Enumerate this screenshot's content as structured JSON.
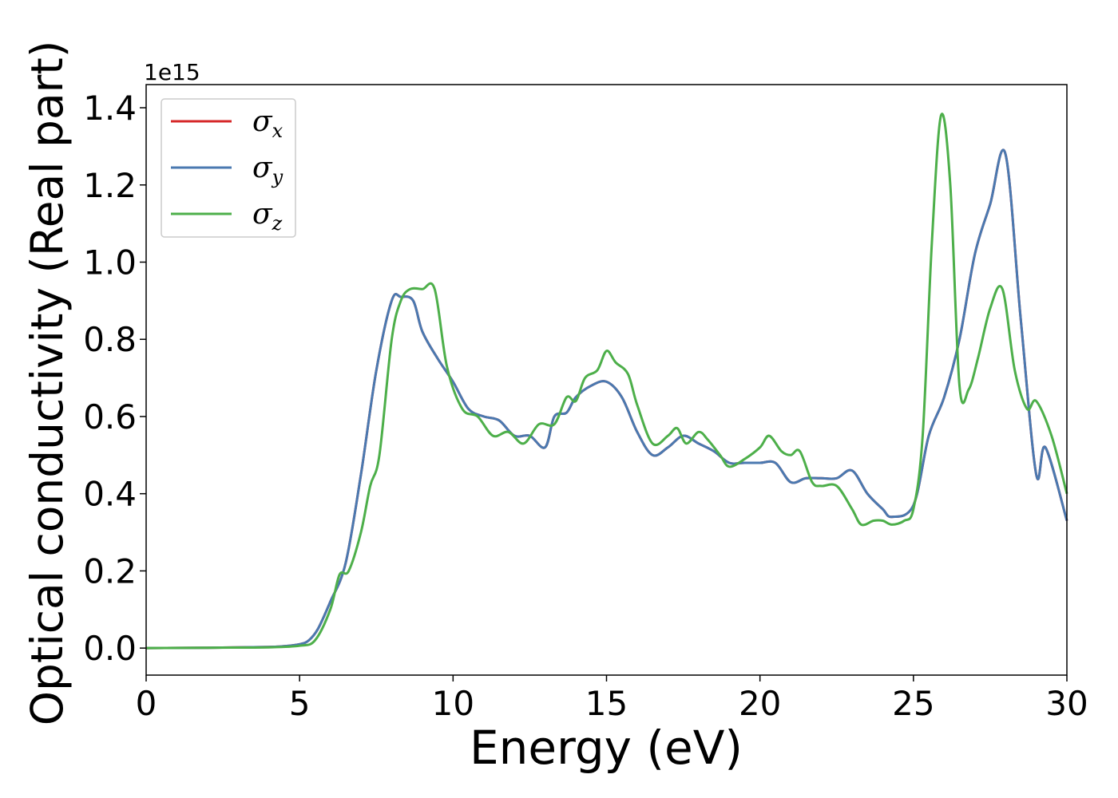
{
  "chart_data": {
    "type": "line",
    "title": "",
    "xlabel": "Energy (eV)",
    "ylabel": "Optical conductivity (Real part)",
    "y_offset_label": "1e15",
    "xlim": [
      0,
      30
    ],
    "ylim": [
      -0.07,
      1.46
    ],
    "x_ticks": [
      0,
      5,
      10,
      15,
      20,
      25,
      30
    ],
    "x_tick_labels": [
      "0",
      "5",
      "10",
      "15",
      "20",
      "25",
      "30"
    ],
    "y_ticks": [
      0.0,
      0.2,
      0.4,
      0.6,
      0.8,
      1.0,
      1.2,
      1.4
    ],
    "y_tick_labels": [
      "0.0",
      "0.2",
      "0.4",
      "0.6",
      "0.8",
      "1.0",
      "1.2",
      "1.4"
    ],
    "grid": false,
    "legend_position": "top-left",
    "series": [
      {
        "name": "σx",
        "symbol": "σ",
        "subscript": "x",
        "color": "#d62728",
        "x": [
          0,
          2,
          4,
          4.5,
          5,
          5.3,
          5.6,
          6,
          6.5,
          7,
          7.5,
          8,
          8.3,
          8.7,
          9,
          9.5,
          10,
          10.5,
          11,
          11.5,
          12,
          12.5,
          13,
          13.3,
          13.7,
          14,
          14.5,
          15,
          15.5,
          16,
          16.5,
          17,
          17.5,
          18,
          18.5,
          19,
          19.5,
          20,
          20.5,
          21,
          21.5,
          22,
          22.5,
          23,
          23.5,
          24,
          24.3,
          25,
          25.5,
          26,
          26.5,
          27,
          27.5,
          28,
          28.5,
          29,
          29.3,
          30
        ],
        "y": [
          0,
          0.001,
          0.003,
          0.005,
          0.01,
          0.02,
          0.05,
          0.12,
          0.22,
          0.45,
          0.72,
          0.9,
          0.91,
          0.9,
          0.82,
          0.75,
          0.69,
          0.62,
          0.6,
          0.59,
          0.55,
          0.55,
          0.52,
          0.6,
          0.61,
          0.65,
          0.68,
          0.69,
          0.65,
          0.56,
          0.5,
          0.52,
          0.55,
          0.53,
          0.51,
          0.48,
          0.48,
          0.48,
          0.48,
          0.43,
          0.44,
          0.44,
          0.44,
          0.46,
          0.4,
          0.36,
          0.34,
          0.37,
          0.55,
          0.65,
          0.8,
          1.02,
          1.15,
          1.28,
          0.85,
          0.45,
          0.52,
          0.33
        ]
      },
      {
        "name": "σy",
        "symbol": "σ",
        "subscript": "y",
        "color": "#4a79b0",
        "x": [
          0,
          2,
          4,
          4.5,
          5,
          5.3,
          5.6,
          6,
          6.5,
          7,
          7.5,
          8,
          8.3,
          8.7,
          9,
          9.5,
          10,
          10.5,
          11,
          11.5,
          12,
          12.5,
          13,
          13.3,
          13.7,
          14,
          14.5,
          15,
          15.5,
          16,
          16.5,
          17,
          17.5,
          18,
          18.5,
          19,
          19.5,
          20,
          20.5,
          21,
          21.5,
          22,
          22.5,
          23,
          23.5,
          24,
          24.3,
          25,
          25.5,
          26,
          26.5,
          27,
          27.5,
          28,
          28.5,
          29,
          29.3,
          30
        ],
        "y": [
          0,
          0.001,
          0.003,
          0.005,
          0.01,
          0.02,
          0.05,
          0.12,
          0.22,
          0.45,
          0.72,
          0.9,
          0.91,
          0.9,
          0.82,
          0.75,
          0.69,
          0.62,
          0.6,
          0.59,
          0.55,
          0.55,
          0.52,
          0.6,
          0.61,
          0.65,
          0.68,
          0.69,
          0.65,
          0.56,
          0.5,
          0.52,
          0.55,
          0.53,
          0.51,
          0.48,
          0.48,
          0.48,
          0.48,
          0.43,
          0.44,
          0.44,
          0.44,
          0.46,
          0.4,
          0.36,
          0.34,
          0.37,
          0.55,
          0.65,
          0.8,
          1.02,
          1.15,
          1.28,
          0.85,
          0.45,
          0.52,
          0.33
        ]
      },
      {
        "name": "σz",
        "symbol": "σ",
        "subscript": "z",
        "color": "#4daf4a",
        "x": [
          0,
          2,
          4,
          5,
          5.5,
          6,
          6.3,
          6.6,
          7,
          7.3,
          7.6,
          8,
          8.3,
          8.6,
          9,
          9.4,
          9.8,
          10.3,
          10.8,
          11.3,
          11.8,
          12.3,
          12.8,
          13.3,
          13.7,
          14,
          14.3,
          14.7,
          15,
          15.3,
          15.7,
          16,
          16.5,
          17,
          17.3,
          17.6,
          18,
          18.3,
          18.7,
          19,
          19.5,
          20,
          20.3,
          20.7,
          21,
          21.3,
          21.7,
          22,
          22.5,
          23,
          23.3,
          23.7,
          24,
          24.3,
          24.7,
          25,
          25.3,
          25.6,
          25.9,
          26.2,
          26.5,
          26.8,
          27.1,
          27.5,
          27.9,
          28.3,
          28.7,
          29,
          29.5,
          30
        ],
        "y": [
          0,
          0.001,
          0.002,
          0.006,
          0.02,
          0.1,
          0.19,
          0.2,
          0.3,
          0.42,
          0.5,
          0.8,
          0.9,
          0.93,
          0.93,
          0.93,
          0.73,
          0.62,
          0.6,
          0.55,
          0.56,
          0.53,
          0.58,
          0.58,
          0.65,
          0.64,
          0.7,
          0.72,
          0.77,
          0.74,
          0.71,
          0.63,
          0.53,
          0.55,
          0.57,
          0.53,
          0.56,
          0.54,
          0.5,
          0.47,
          0.49,
          0.52,
          0.55,
          0.51,
          0.5,
          0.51,
          0.43,
          0.42,
          0.42,
          0.36,
          0.32,
          0.33,
          0.33,
          0.32,
          0.33,
          0.36,
          0.55,
          1.05,
          1.38,
          1.2,
          0.68,
          0.67,
          0.75,
          0.88,
          0.93,
          0.72,
          0.62,
          0.64,
          0.55,
          0.4
        ]
      }
    ]
  }
}
